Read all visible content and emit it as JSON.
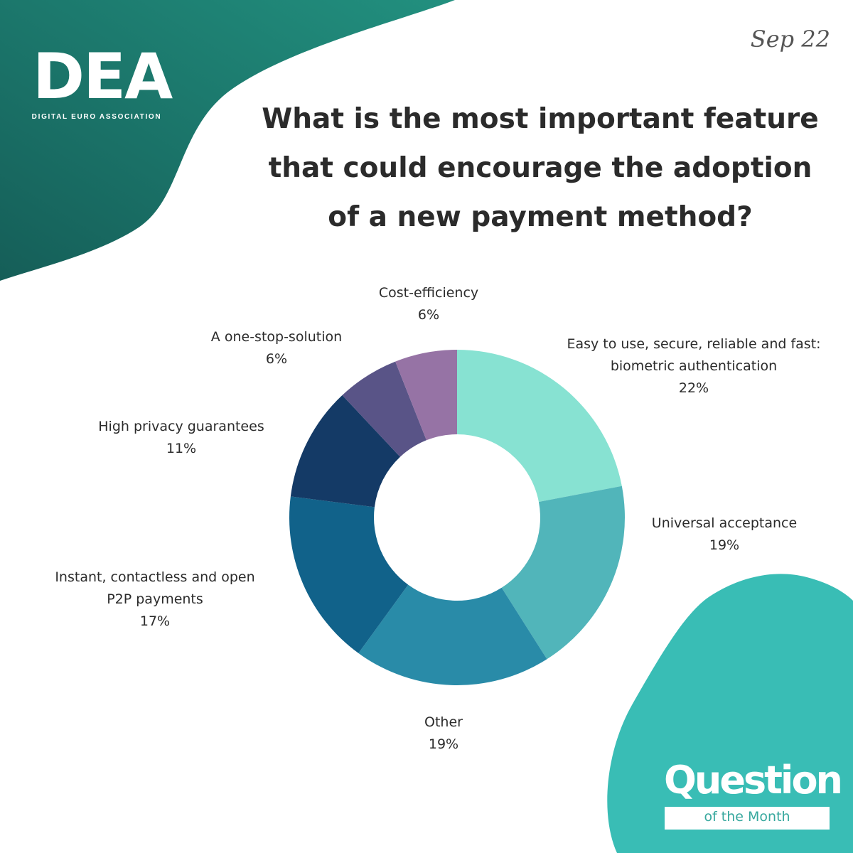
{
  "brand": {
    "logo_text": "DEA",
    "logo_subtitle": "DIGITAL EURO ASSOCIATION",
    "primary_color": "#1e8578",
    "accent_color": "#39bdb5"
  },
  "header": {
    "date": "Sep 22",
    "title_lines": [
      "What is the most important feature",
      "that could encourage the adoption",
      "of a new payment method?"
    ]
  },
  "badge": {
    "title": "Question",
    "subtitle": "of the Month"
  },
  "chart_data": {
    "type": "pie",
    "variant": "donut",
    "title": "What is the most important feature that could encourage the adoption of a new payment method?",
    "unit": "%",
    "slices": [
      {
        "label_lines": [
          "Easy to use, secure, reliable and fast:",
          "biometric authentication"
        ],
        "value": 22,
        "value_label": "22%",
        "color": "#87e2d2"
      },
      {
        "label_lines": [
          "Universal acceptance"
        ],
        "value": 19,
        "value_label": "19%",
        "color": "#51b5ba"
      },
      {
        "label_lines": [
          "Other"
        ],
        "value": 19,
        "value_label": "19%",
        "color": "#298ba8"
      },
      {
        "label_lines": [
          "Instant, contactless and open",
          "P2P payments"
        ],
        "value": 17,
        "value_label": "17%",
        "color": "#11628a"
      },
      {
        "label_lines": [
          "High privacy guarantees"
        ],
        "value": 11,
        "value_label": "11%",
        "color": "#143a66"
      },
      {
        "label_lines": [
          "A one-stop-solution"
        ],
        "value": 6,
        "value_label": "6%",
        "color": "#595487"
      },
      {
        "label_lines": [
          "Cost-efficiency"
        ],
        "value": 6,
        "value_label": "6%",
        "color": "#9673a5"
      }
    ]
  }
}
